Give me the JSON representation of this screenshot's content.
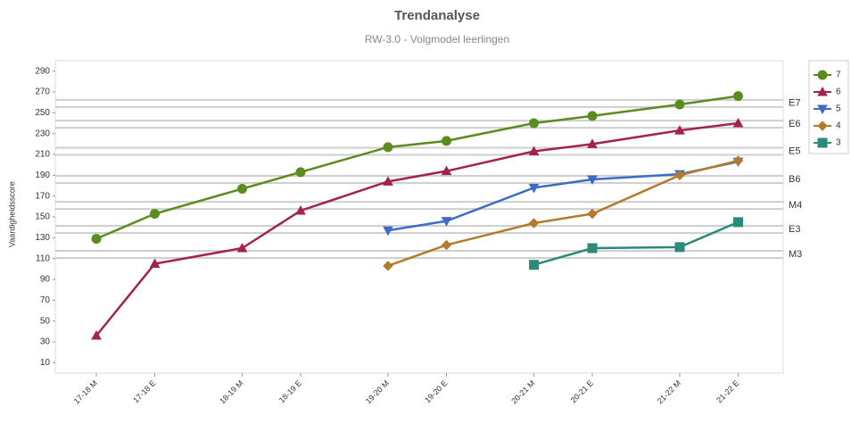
{
  "chart_data": {
    "type": "line",
    "title": "Trendanalyse",
    "subtitle": "RW-3.0 - Volgmodel leerlingen",
    "y_label": "Vaardigheidsscore",
    "categories": [
      "17-18 M",
      "17-18 E",
      "18-19 M",
      "18-19 E",
      "19-20 M",
      "19-20 E",
      "20-21 M",
      "20-21 E",
      "21-22 M",
      "21-22 E"
    ],
    "series": [
      {
        "name": "7",
        "color": "#5b8c1f",
        "marker": "circle",
        "values": [
          129,
          153,
          177,
          193,
          217,
          223,
          240,
          247,
          258,
          266
        ]
      },
      {
        "name": "6",
        "color": "#a3234b",
        "marker": "triangle",
        "values": [
          36,
          105,
          120,
          156,
          184,
          194,
          213,
          220,
          233,
          240
        ]
      },
      {
        "name": "5",
        "color": "#3d6cc6",
        "marker": "triangle-down",
        "values": [
          null,
          null,
          null,
          null,
          137,
          146,
          178,
          186,
          191,
          203
        ]
      },
      {
        "name": "4",
        "color": "#b27c2c",
        "marker": "diamond",
        "values": [
          null,
          null,
          null,
          null,
          103,
          123,
          144,
          153,
          190,
          204
        ]
      },
      {
        "name": "3",
        "color": "#2b8a78",
        "marker": "square",
        "values": [
          null,
          null,
          null,
          null,
          null,
          null,
          104,
          120,
          121,
          145
        ]
      }
    ],
    "reference_lines": [
      {
        "label": "E7",
        "value": 259
      },
      {
        "label": "E6",
        "value": 239
      },
      {
        "label": "E5",
        "value": 213
      },
      {
        "label": "B6",
        "value": 186
      },
      {
        "label": "M4",
        "value": 161
      },
      {
        "label": "E3",
        "value": 138
      },
      {
        "label": "M3",
        "value": 114
      }
    ],
    "ylim": [
      0,
      300
    ],
    "yticks": [
      10,
      30,
      50,
      70,
      90,
      110,
      130,
      150,
      170,
      190,
      210,
      230,
      250,
      270,
      290
    ],
    "grid": false,
    "legend": "right"
  }
}
